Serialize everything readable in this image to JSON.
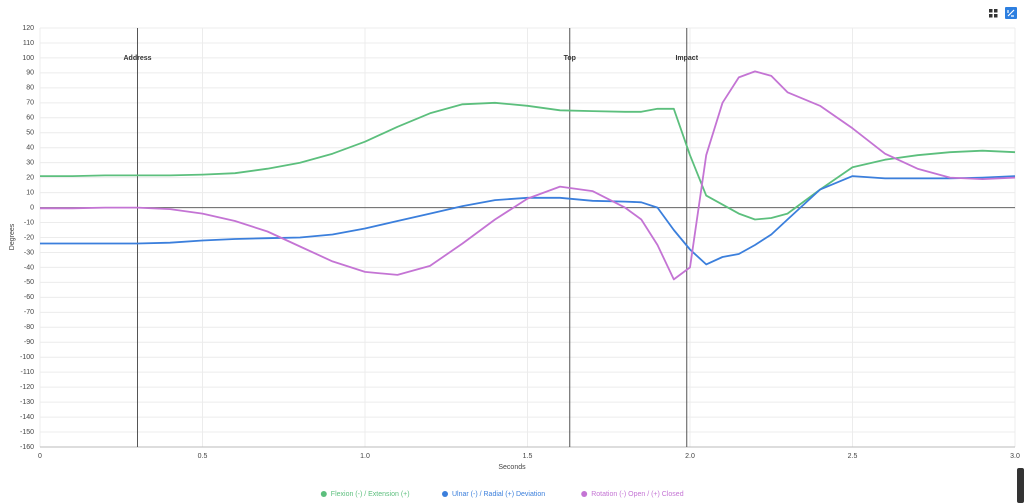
{
  "chart_data": {
    "type": "line",
    "x_label": "Seconds",
    "y_label": "Degrees",
    "x": [
      0,
      0.1,
      0.2,
      0.3,
      0.4,
      0.5,
      0.6,
      0.7,
      0.8,
      0.9,
      1.0,
      1.1,
      1.2,
      1.3,
      1.4,
      1.5,
      1.6,
      1.7,
      1.8,
      1.85,
      1.9,
      1.95,
      2.0,
      2.05,
      2.1,
      2.15,
      2.2,
      2.25,
      2.3,
      2.4,
      2.5,
      2.6,
      2.7,
      2.8,
      2.9,
      3.0
    ],
    "series": [
      {
        "name": "Flexion (-) / Extension (+)",
        "color": "#5cbf7d",
        "values": [
          21,
          21,
          21.5,
          21.5,
          21.5,
          22,
          23,
          26,
          30,
          36,
          44,
          54,
          63,
          69,
          70,
          68,
          65,
          64.5,
          64,
          64,
          66,
          66,
          35,
          8,
          2,
          -4,
          -8,
          -7,
          -4,
          12,
          27,
          32,
          35,
          37,
          38,
          37
        ]
      },
      {
        "name": "Ulnar (-) / Radial (+) Deviation",
        "color": "#3b7fdc",
        "values": [
          -24,
          -24,
          -24,
          -24,
          -23.5,
          -22,
          -21,
          -20.5,
          -20,
          -18,
          -14,
          -9,
          -4,
          1,
          5,
          6.5,
          6.5,
          4.5,
          4,
          3.5,
          0,
          -15,
          -28,
          -38,
          -33,
          -31,
          -25,
          -18,
          -8,
          12,
          21,
          19.5,
          19.5,
          19.5,
          20,
          21
        ]
      },
      {
        "name": "Rotation (-) Open / (+) Closed",
        "color": "#c474d4",
        "values": [
          -0.5,
          -0.5,
          0,
          0,
          -1,
          -4,
          -9,
          -16,
          -26,
          -36,
          -43,
          -45,
          -39,
          -24,
          -8,
          6,
          14,
          11,
          0,
          -8,
          -25,
          -48,
          -40,
          35,
          70,
          87,
          91,
          88,
          77,
          68,
          53,
          36,
          26,
          20,
          19,
          20
        ]
      }
    ],
    "annotations": [
      {
        "x": 0.3,
        "label": "Address"
      },
      {
        "x": 1.63,
        "label": "Top"
      },
      {
        "x": 1.99,
        "label": "Impact"
      }
    ],
    "xlim": [
      0,
      3
    ],
    "xticks": [
      0,
      0.5,
      {
        "value": 1,
        "label": "1.0"
      },
      1.5,
      {
        "value": 2,
        "label": "2.0"
      },
      2.5,
      {
        "value": 3,
        "label": "3.0"
      }
    ],
    "ylim": [
      -160,
      120
    ],
    "yticks": [
      -160,
      -150,
      -140,
      -130,
      -120,
      -110,
      -100,
      -90,
      -80,
      -70,
      -60,
      -50,
      -40,
      -30,
      -20,
      -10,
      0,
      10,
      20,
      30,
      40,
      50,
      60,
      70,
      80,
      90,
      100,
      110,
      120
    ],
    "grid": true
  }
}
